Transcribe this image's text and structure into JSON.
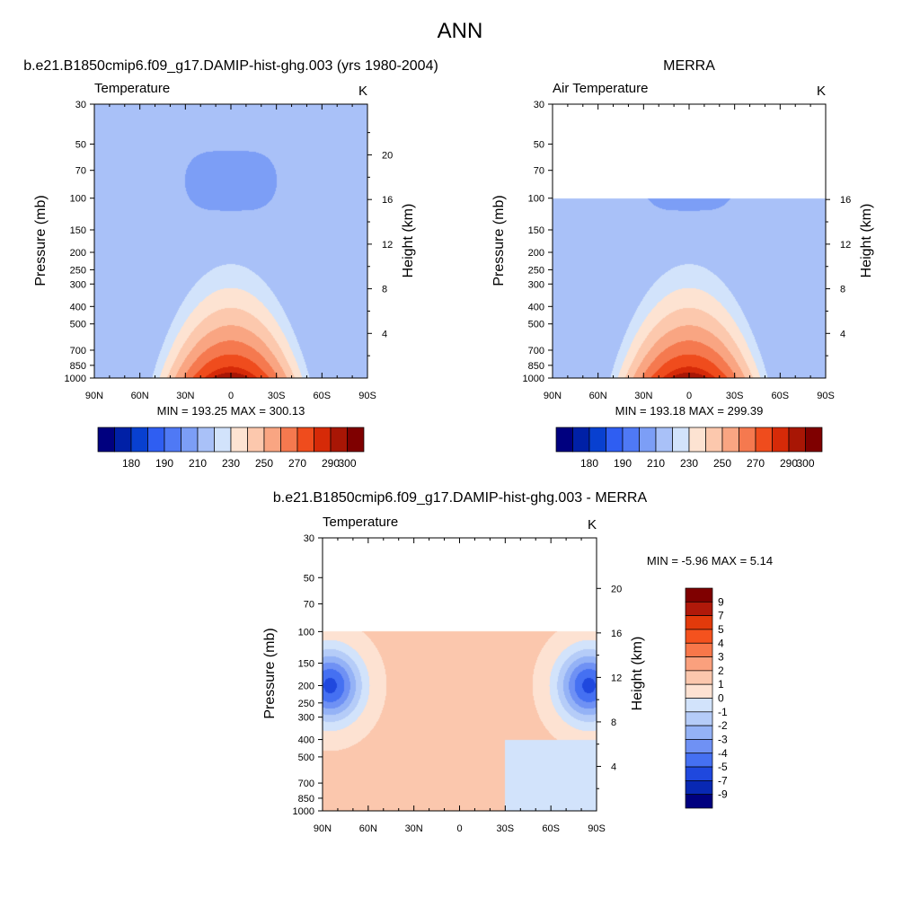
{
  "figure": {
    "title": "ANN"
  },
  "chart_data": [
    {
      "type": "heatmap",
      "case_title": "b.e21.B1850cmip6.f09_g17.DAMIP-hist-ghg.003 (yrs 1980-2004)",
      "left_label": "Temperature",
      "units": "K",
      "ylabel": "Pressure (mb)",
      "ylabel_right": "Height (km)",
      "x_ticks": [
        "90N",
        "60N",
        "30N",
        "0",
        "30S",
        "60S",
        "90S"
      ],
      "p_ticks": [
        "30",
        "50",
        "70",
        "100",
        "150",
        "200",
        "250",
        "300",
        "400",
        "500",
        "700",
        "850",
        "1000"
      ],
      "z_ticks": [
        "4",
        "8",
        "12",
        "16",
        "20"
      ],
      "stats": "MIN = 193.25  MAX = 300.13",
      "min": 193.25,
      "max": 300.13,
      "ptop": 30,
      "colorbar_labels": [
        "180",
        "190",
        "210",
        "230",
        "250",
        "270",
        "290",
        "300"
      ]
    },
    {
      "type": "heatmap",
      "case_title": "MERRA",
      "left_label": "Air Temperature",
      "units": "K",
      "ylabel": "Pressure (mb)",
      "ylabel_right": "Height (km)",
      "x_ticks": [
        "90N",
        "60N",
        "30N",
        "0",
        "30S",
        "60S",
        "90S"
      ],
      "p_ticks": [
        "30",
        "50",
        "70",
        "100",
        "150",
        "200",
        "250",
        "300",
        "400",
        "500",
        "700",
        "850",
        "1000"
      ],
      "z_ticks": [
        "4",
        "8",
        "12",
        "16"
      ],
      "stats": "MIN = 193.18  MAX = 299.39",
      "min": 193.18,
      "max": 299.39,
      "ptop": 100,
      "colorbar_labels": [
        "180",
        "190",
        "210",
        "230",
        "250",
        "270",
        "290",
        "300"
      ]
    },
    {
      "type": "heatmap",
      "case_title": "b.e21.B1850cmip6.f09_g17.DAMIP-hist-ghg.003 - MERRA",
      "left_label": "Temperature",
      "units": "K",
      "ylabel": "Pressure (mb)",
      "ylabel_right": "Height (km)",
      "x_ticks": [
        "90N",
        "60N",
        "30N",
        "0",
        "30S",
        "60S",
        "90S"
      ],
      "p_ticks": [
        "30",
        "50",
        "70",
        "100",
        "150",
        "200",
        "250",
        "300",
        "400",
        "500",
        "700",
        "850",
        "1000"
      ],
      "z_ticks": [
        "4",
        "8",
        "12",
        "16",
        "20"
      ],
      "stats": "MIN =  -5.96  MAX =   5.14",
      "min": -5.96,
      "max": 5.14,
      "ptop": 100,
      "colorbar_labels": [
        "9",
        "7",
        "5",
        "4",
        "3",
        "2",
        "1",
        "0",
        "-1",
        "-2",
        "-3",
        "-4",
        "-5",
        "-7",
        "-9"
      ]
    }
  ],
  "colors": {
    "abs_palette": [
      "#00007f",
      "#0020a6",
      "#0840d0",
      "#2f5ef2",
      "#4f79f5",
      "#7c9ef6",
      "#a9c1f8",
      "#d2e3fb",
      "#fde3d2",
      "#fcc8ad",
      "#f9a582",
      "#f5794f",
      "#ef4c1d",
      "#d62a08",
      "#a81605",
      "#7f0000"
    ],
    "diff_palette": [
      "#7f0000",
      "#b0190a",
      "#e23a0b",
      "#f4521e",
      "#f8774a",
      "#faa07d",
      "#fbc7ad",
      "#fde2d2",
      "#d2e3fb",
      "#b5ccf8",
      "#94b2f6",
      "#6f91f4",
      "#4570f2",
      "#1f48de",
      "#0828b3",
      "#00007f"
    ]
  }
}
